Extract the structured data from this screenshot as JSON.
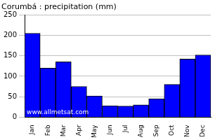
{
  "chart_data": {
    "type": "bar",
    "title": "Corumbá : precipitation (mm)",
    "annotation": "www.allmetsat.com",
    "categories": [
      "Jan",
      "Feb",
      "Mar",
      "Apr",
      "May",
      "Jun",
      "Jul",
      "Aug",
      "Sep",
      "Oct",
      "Nov",
      "Dec"
    ],
    "values": [
      205,
      120,
      135,
      75,
      52,
      28,
      27,
      30,
      45,
      80,
      142,
      152
    ],
    "color": "#0000ff",
    "ylim": [
      0,
      250
    ],
    "yticks": [
      0,
      50,
      100,
      150,
      200,
      250
    ],
    "grid": true
  }
}
